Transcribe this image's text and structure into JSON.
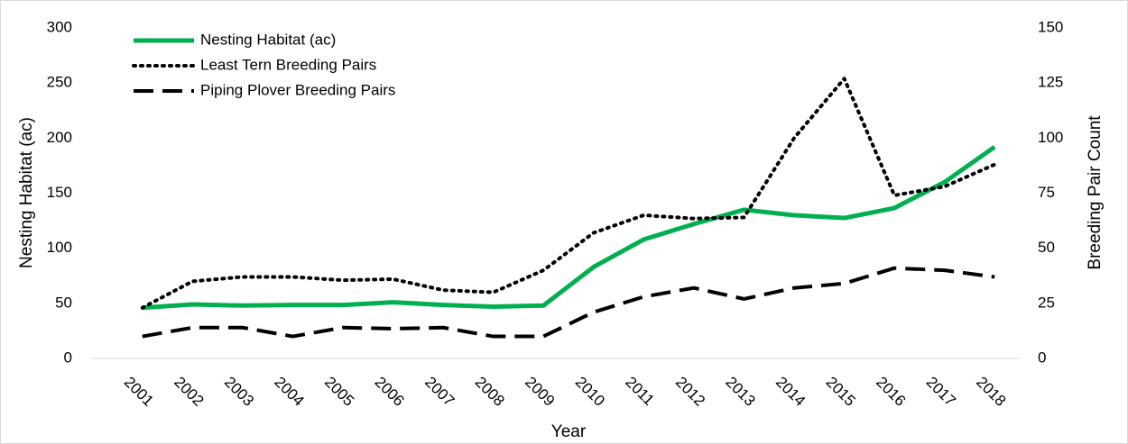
{
  "chart_data": {
    "type": "line",
    "categories": [
      "2001",
      "2002",
      "2003",
      "2004",
      "2005",
      "2006",
      "2007",
      "2008",
      "2009",
      "2010",
      "2011",
      "2012",
      "2013",
      "2014",
      "2015",
      "2016",
      "2017",
      "2018"
    ],
    "series": [
      {
        "name": "Nesting Habitat (ac)",
        "color": "#00b050",
        "style": "solid",
        "axis": "y",
        "values": [
          46,
          49,
          48,
          48.5,
          48.5,
          51,
          48.5,
          47,
          48,
          83,
          108,
          122,
          135,
          130,
          127.5,
          136.5,
          160,
          192
        ]
      },
      {
        "name": "Least Tern Breeding Pairs",
        "color": "#000000",
        "style": "dotted",
        "axis": "y2",
        "values": [
          23,
          35,
          37,
          37,
          35.5,
          36,
          31,
          30,
          40,
          57,
          65,
          63.5,
          64,
          100,
          127,
          74,
          78,
          88
        ]
      },
      {
        "name": "Piping Plover Breeding Pairs",
        "color": "#000000",
        "style": "dashed",
        "axis": "y2",
        "values": [
          10,
          14,
          14,
          10,
          14,
          13.5,
          14,
          10,
          10,
          21,
          28,
          32,
          27,
          32,
          34,
          41,
          40,
          37
        ]
      }
    ],
    "ylim": [
      0,
      300
    ],
    "yticks": [
      0,
      50,
      100,
      150,
      200,
      250,
      300
    ],
    "y2lim": [
      0,
      150
    ],
    "y2ticks": [
      0,
      25,
      50,
      75,
      100,
      125,
      150
    ],
    "ylabel": "Nesting Habitat (ac)",
    "y2label": "Breeding Pair Count",
    "xlabel": "Year",
    "legend": "top-left"
  }
}
